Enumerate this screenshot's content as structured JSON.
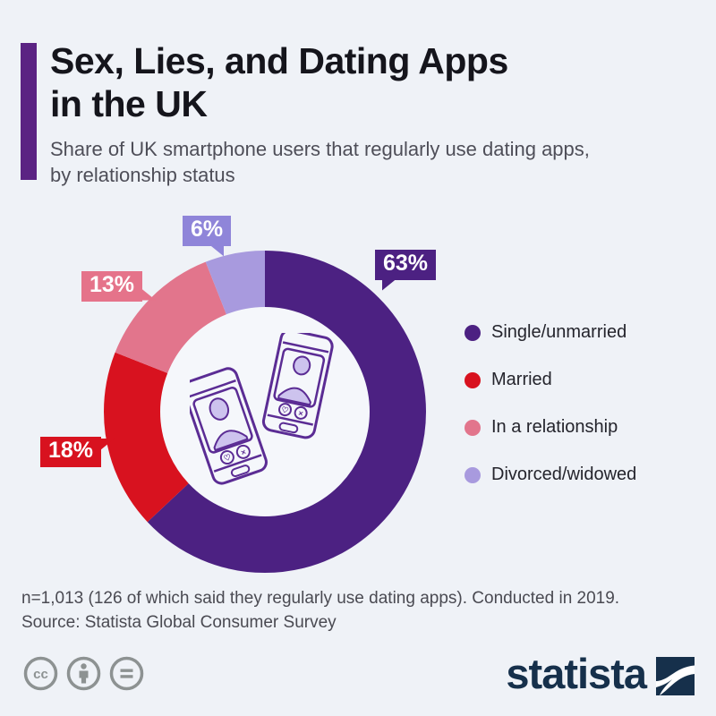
{
  "colors": {
    "background": "#eff2f7",
    "hole": "#f5f7fb",
    "accent_bar": "#5b2383",
    "title": "#15151c",
    "subtitle": "#4e4e58",
    "legend_text": "#24242c",
    "footnote": "#4a4a52",
    "brand_navy": "#16304b",
    "license_gray": "#8d9292",
    "phone_outline": "#5b2c94",
    "phone_fill": "#cdc3ee"
  },
  "header": {
    "title_line1": "Sex, Lies, and Dating Apps",
    "title_line2": "in the UK",
    "subtitle": "Share of UK smartphone users that regularly use dating apps, by relationship status"
  },
  "chart_data": {
    "type": "pie",
    "donut": true,
    "title": "Sex, Lies, and Dating Apps in the UK",
    "subtitle": "Share of UK smartphone users that regularly use dating apps, by relationship status",
    "categories": [
      "Single/unmarried",
      "Married",
      "In a relationship",
      "Divorced/widowed"
    ],
    "values": [
      63,
      18,
      13,
      6
    ],
    "unit": "%",
    "colors": [
      "#4c2182",
      "#d8121f",
      "#e2758c",
      "#a89ade"
    ],
    "start_angle_deg": 0,
    "direction": "clockwise",
    "legend_position": "right",
    "center_icon": "two-smartphones-dating-profile-illustration"
  },
  "callouts": [
    {
      "text": "63%",
      "color": "#4c2182"
    },
    {
      "text": "18%",
      "color": "#d8121f"
    },
    {
      "text": "13%",
      "color": "#e5738a"
    },
    {
      "text": "6%",
      "color": "#8f85d9"
    }
  ],
  "footer": {
    "note_line1": "n=1,013 (126 of which said they regularly use dating apps). Conducted in 2019.",
    "note_line2": "Source: Statista Global Consumer Survey",
    "license_icons": [
      "cc-icon",
      "attribution-icon",
      "nd-icon"
    ],
    "brand": "statista"
  }
}
